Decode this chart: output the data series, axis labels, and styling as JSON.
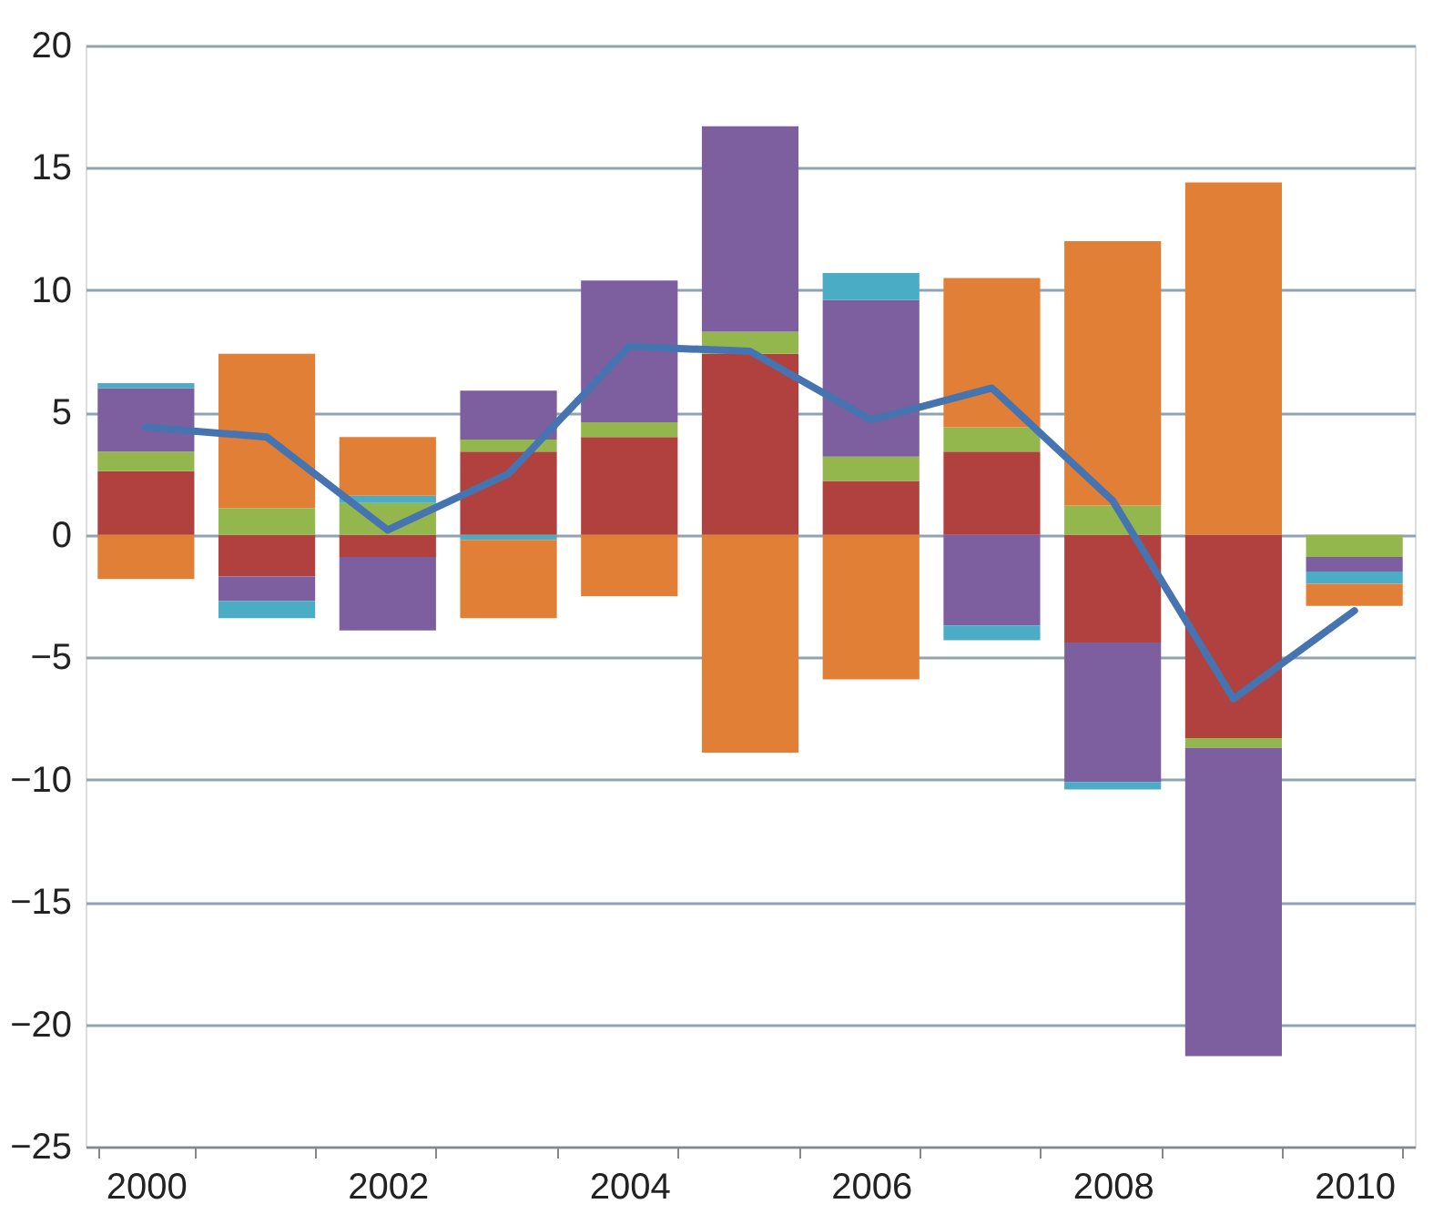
{
  "chart_data": {
    "type": "bar",
    "stacked": true,
    "categories": [
      "2000",
      null,
      "2002",
      null,
      "2004",
      null,
      "2006",
      null,
      "2008",
      null,
      "2010"
    ],
    "series": [
      {
        "color": "#b0413e",
        "values": [
          2.6,
          -1.7,
          -0.9,
          3.4,
          4.0,
          7.4,
          2.2,
          3.4,
          -4.4,
          -8.3,
          null
        ]
      },
      {
        "color": "#93b74c",
        "values": [
          0.8,
          1.1,
          1.3,
          0.5,
          0.6,
          0.9,
          1.0,
          1.0,
          1.2,
          -0.4,
          -0.9
        ]
      },
      {
        "color": "#7d5fa0",
        "values": [
          2.6,
          -1.0,
          -3.0,
          2.0,
          5.8,
          8.4,
          6.4,
          -3.7,
          -5.7,
          -12.6,
          -0.6
        ]
      },
      {
        "color": "#4aacc5",
        "values": [
          0.2,
          -0.7,
          0.3,
          -0.2,
          null,
          null,
          1.1,
          -0.6,
          -0.3,
          null,
          -0.5
        ]
      },
      {
        "color": "#e07f35",
        "values": [
          -1.8,
          6.3,
          2.4,
          -3.2,
          -2.5,
          -8.9,
          -5.9,
          6.1,
          10.8,
          14.4,
          -0.9
        ]
      },
      {
        "type": "line",
        "color": "#4674b0",
        "values": [
          4.4,
          4.0,
          0.2,
          2.5,
          7.7,
          7.5,
          4.7,
          6.0,
          1.4,
          -6.7,
          -3.1
        ]
      }
    ],
    "ylim": [
      -25,
      20
    ],
    "yticks": [
      -25,
      -20,
      -15,
      -10,
      -5,
      0,
      5,
      10,
      15,
      20
    ],
    "grid": "y",
    "marker": "none",
    "line_style": "solid"
  }
}
